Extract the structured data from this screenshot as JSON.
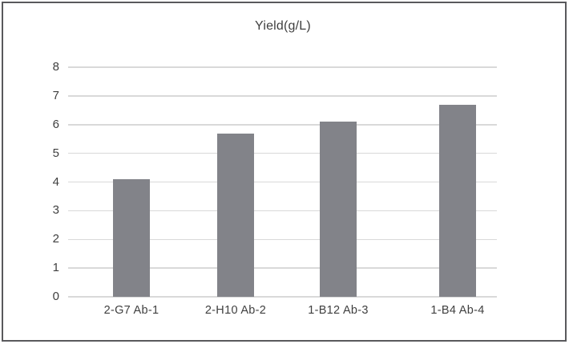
{
  "chart_data": {
    "type": "bar",
    "title": "Yield(g/L)",
    "categories": [
      "2-G7 Ab-1",
      "2-H10 Ab-2",
      "1-B12 Ab-3",
      "1-B4 Ab-4"
    ],
    "values": [
      4.1,
      5.7,
      6.1,
      6.7
    ],
    "xlabel": "",
    "ylabel": "",
    "ylim": [
      0,
      8
    ],
    "yticks": [
      0,
      1,
      2,
      3,
      4,
      5,
      6,
      7,
      8
    ],
    "grid": true,
    "legend": false,
    "colors": {
      "bar": "#828389",
      "gridline": "#d9d9d9",
      "text": "#3f3f3f",
      "frame_border": "#59595c",
      "background": "#ffffff"
    }
  }
}
